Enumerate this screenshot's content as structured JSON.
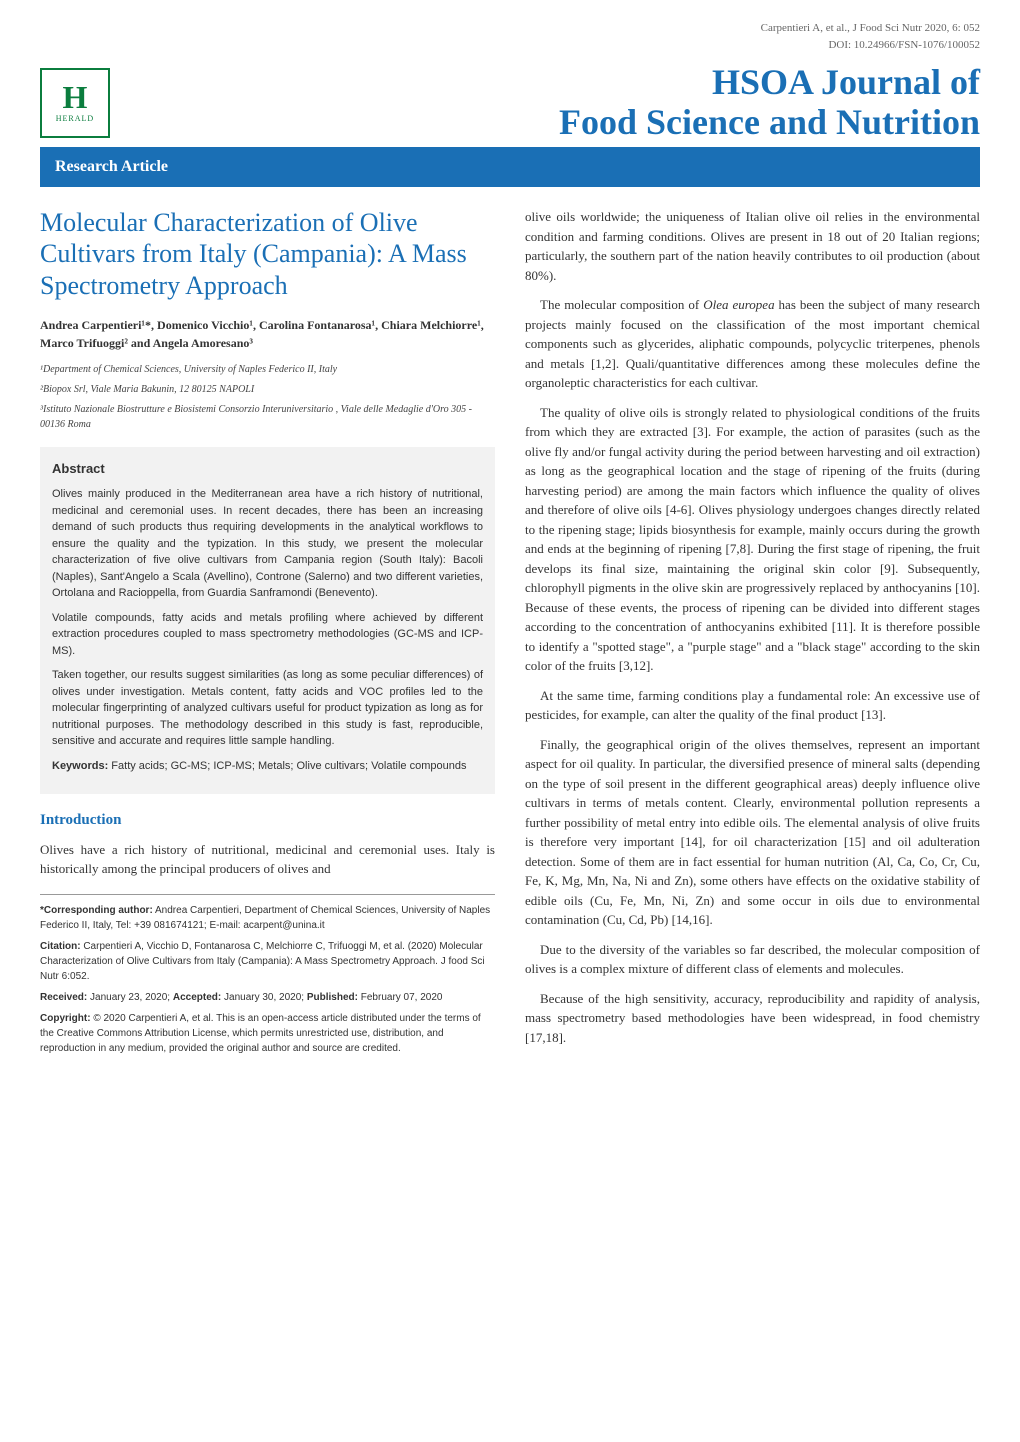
{
  "meta": {
    "citation_line1": "Carpentieri A, et al., J Food Sci Nutr 2020, 6: 052",
    "citation_line2": "DOI: 10.24966/FSN-1076/100052"
  },
  "logo": {
    "letter": "H",
    "brand": "HERALD"
  },
  "journal": {
    "title_line1": "HSOA Journal of",
    "title_line2": "Food Science and Nutrition"
  },
  "research_banner": "Research Article",
  "article": {
    "title": "Molecular Characterization of Olive Cultivars from Italy (Campania): A Mass Spectrometry Approach",
    "authors": "Andrea Carpentieri¹*, Domenico Vicchio¹, Carolina Fontanarosa¹, Chiara Melchiorre¹, Marco Trifuoggi² and Angela Amoresano³",
    "affiliations": [
      "¹Department of Chemical Sciences, University of Naples Federico II, Italy",
      "²Biopox Srl, Viale Maria Bakunin, 12 80125 NAPOLI",
      "³Istituto Nazionale Biostrutture e Biosistemi Consorzio Interuniversitario , Viale delle Medaglie d'Oro 305 - 00136 Roma"
    ]
  },
  "abstract": {
    "heading": "Abstract",
    "p1": "Olives mainly produced in the Mediterranean area have a rich history of nutritional, medicinal and ceremonial uses. In recent decades, there has been an increasing demand of such products thus requiring developments in the analytical workflows to ensure the quality and the typization. In this study, we present the molecular characterization of five olive cultivars from Campania region (South Italy): Bacoli (Naples), Sant'Angelo a Scala (Avellino), Controne (Salerno) and two different varieties, Ortolana and Racioppella, from Guardia Sanframondi (Benevento).",
    "p2": "Volatile compounds, fatty acids and metals profiling where achieved by different extraction procedures coupled to mass spectrometry methodologies (GC-MS and ICP-MS).",
    "p3": "Taken together, our results suggest similarities (as long as some peculiar differences) of olives under investigation. Metals content, fatty acids and VOC profiles led to the molecular fingerprinting of analyzed cultivars useful for product typization as long as for nutritional purposes. The methodology described in this study is fast, reproducible, sensitive and accurate and requires little sample handling.",
    "keywords_label": "Keywords:",
    "keywords": " Fatty acids; GC-MS; ICP-MS; Metals; Olive cultivars; Volatile compounds"
  },
  "intro": {
    "heading": "Introduction",
    "p1": "Olives have a rich history of nutritional, medicinal and ceremonial uses. Italy is historically among the principal producers of olives and"
  },
  "footer": {
    "corresponding_label": "*Corresponding author:",
    "corresponding": " Andrea Carpentieri, Department of Chemical Sciences, University of Naples Federico II, Italy, Tel: +39 081674121; E-mail: acarpent@unina.it",
    "citation_label": "Citation:",
    "citation": " Carpentieri A, Vicchio D, Fontanarosa C, Melchiorre C, Trifuoggi M, et al. (2020) Molecular Characterization of Olive Cultivars from Italy (Campania): A Mass Spectrometry Approach. J food Sci Nutr 6:052.",
    "received_label": "Received:",
    "received": " January 23, 2020; ",
    "accepted_label": "Accepted:",
    "accepted": " January 30, 2020; ",
    "published_label": "Published:",
    "published": " February 07, 2020",
    "copyright_label": "Copyright:",
    "copyright": " © 2020 Carpentieri A, et al. This is an open-access article distributed under the terms of the Creative Commons Attribution License, which permits unrestricted use, distribution, and reproduction in any medium, provided the original author and source are credited."
  },
  "col2": {
    "p1": "olive oils worldwide; the uniqueness of Italian olive oil relies in the environmental condition and farming conditions. Olives are present in 18 out of 20 Italian regions; particularly, the southern part of the nation heavily contributes to oil production (about 80%).",
    "p2_a": "The molecular composition of ",
    "p2_em": "Olea europea",
    "p2_b": " has been the subject of many research projects mainly focused on the classification of the most important chemical components such as glycerides, aliphatic compounds, polycyclic triterpenes, phenols and metals [1,2]. Quali/quantitative differences among these molecules define the organoleptic characteristics for each cultivar.",
    "p3": "The quality of olive oils is strongly related to physiological conditions of the fruits from which they are extracted [3]. For example, the action of parasites (such as the olive fly and/or fungal activity during the period between harvesting and oil extraction) as long as the geographical location and the stage of ripening of the fruits (during harvesting period) are among the main factors which influence the quality of olives and therefore of olive oils [4-6]. Olives physiology undergoes changes directly related to the ripening stage; lipids biosynthesis for example, mainly occurs during the growth and ends at the beginning of ripening [7,8]. During the first stage of ripening, the fruit develops its final size, maintaining the original skin color [9]. Subsequently, chlorophyll pigments in the olive skin are progressively replaced by anthocyanins [10]. Because of these events, the process of ripening can be divided into different stages according to the concentration of anthocyanins exhibited [11]. It is therefore possible to identify a \"spotted stage\", a \"purple stage\" and a \"black stage\" according to the skin color of the fruits [3,12].",
    "p4": "At the same time, farming conditions play a fundamental role: An excessive use of pesticides, for example, can alter the quality of the final product [13].",
    "p5": "Finally, the geographical origin of the olives themselves, represent an important aspect for oil quality. In particular, the diversified presence of mineral salts (depending on the type of soil present in the different geographical areas) deeply influence olive cultivars in terms of metals content. Clearly, environmental pollution represents a further possibility of metal entry into edible oils. The elemental analysis of olive fruits is therefore very important [14], for oil characterization [15] and oil adulteration detection. Some of them are in fact essential for human nutrition (Al, Ca, Co, Cr, Cu, Fe, K, Mg, Mn, Na, Ni and Zn), some others have effects on the oxidative stability of edible oils (Cu, Fe, Mn, Ni, Zn) and some occur in oils due to environmental contamination (Cu, Cd, Pb) [14,16].",
    "p6": "Due to the diversity of the variables so far described, the molecular composition of olives is a complex mixture of different class of elements and molecules.",
    "p7": "Because of the high sensitivity, accuracy, reproducibility and rapidity of analysis, mass spectrometry based methodologies have been widespread, in food chemistry [17,18]."
  },
  "colors": {
    "blue": "#1a6fb5",
    "green": "#0b7d3e",
    "grey_bg": "#f2f2f2"
  }
}
